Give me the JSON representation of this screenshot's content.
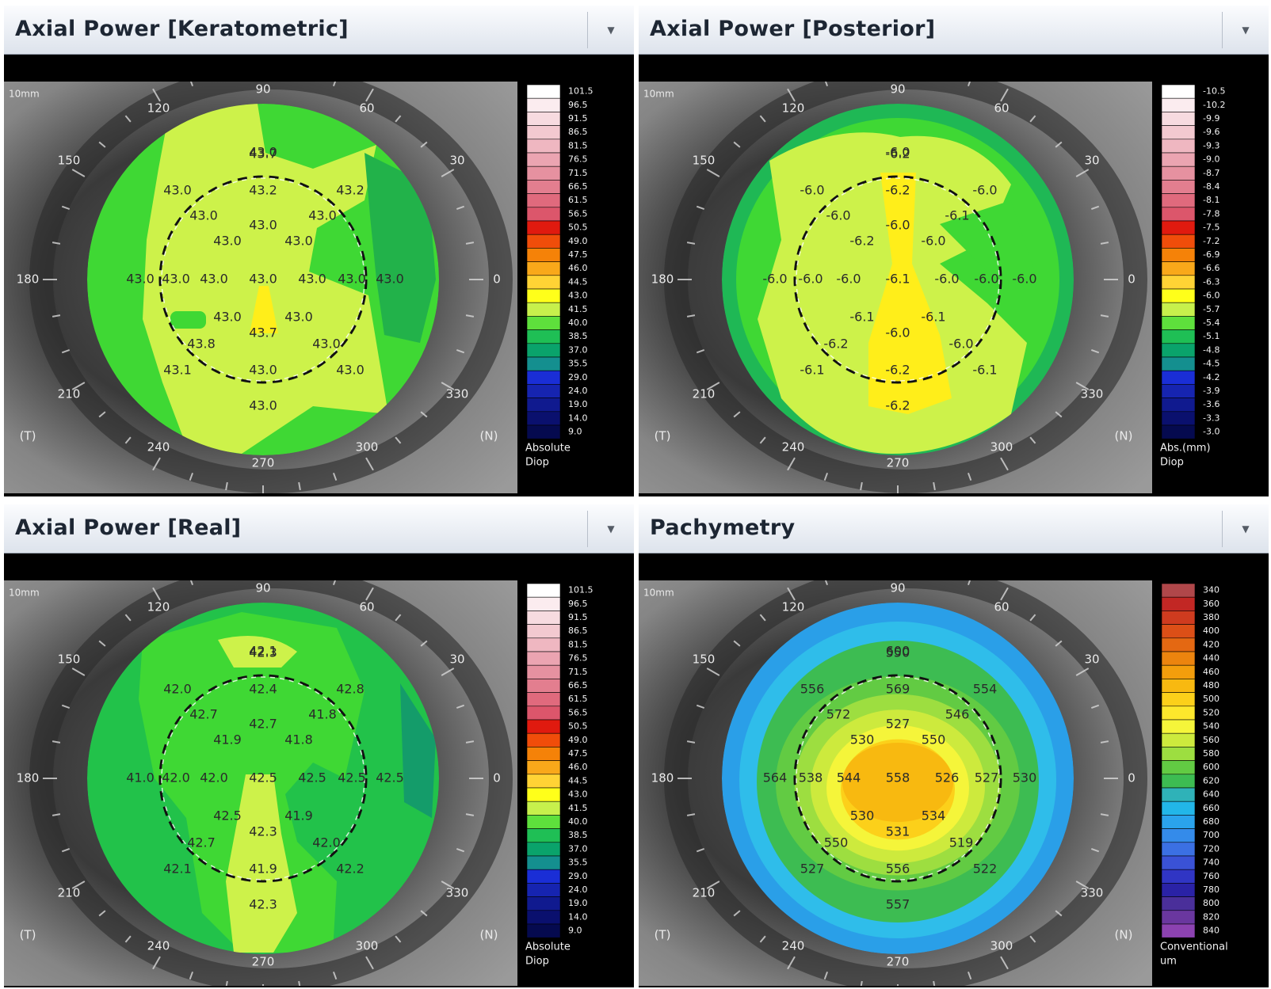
{
  "panels": [
    {
      "title": "Axial Power [Keratometric]",
      "scale_label": "10mm",
      "scheme": "green",
      "center_map": "green",
      "angles": {
        "a90": "90",
        "a120": "120",
        "a60": "60",
        "a150": "150",
        "a30": "30",
        "a180": "180",
        "a0": "0",
        "a210": "210",
        "a330": "330",
        "a240": "240",
        "a300": "300",
        "a270": "270"
      },
      "eye_left": "(T)",
      "eye_right": "(N)",
      "legend_values": [
        "101.5",
        "96.5",
        "91.5",
        "86.5",
        "81.5",
        "76.5",
        "71.5",
        "66.5",
        "61.5",
        "56.5",
        "50.5",
        "49.0",
        "47.5",
        "46.0",
        "44.5",
        "43.0",
        "41.5",
        "40.0",
        "38.5",
        "37.0",
        "35.5",
        "29.0",
        "24.0",
        "19.0",
        "14.0",
        "9.0"
      ],
      "legend_unit_1": "Absolute",
      "legend_unit_2": "Diop",
      "map_values": [
        "43.0",
        "43.0",
        "43.2",
        "43.2",
        "43.0",
        "43.0",
        "43.0",
        "43.0",
        "43.0",
        "43.0",
        "43.0",
        "43.0",
        "43.0",
        "43.0",
        "43.0",
        "43.0",
        "43.0",
        "43.0",
        "43.7",
        "43.8",
        "43.0",
        "43.1",
        "43.0",
        "43.0",
        "43.0",
        "43.7"
      ]
    },
    {
      "title": "Axial Power [Posterior]",
      "scale_label": "10mm",
      "scheme": "posterior",
      "center_map": "posterior",
      "angles": {
        "a90": "90",
        "a120": "120",
        "a60": "60",
        "a150": "150",
        "a30": "30",
        "a180": "180",
        "a0": "0",
        "a210": "210",
        "a330": "330",
        "a240": "240",
        "a300": "300",
        "a270": "270"
      },
      "eye_left": "(T)",
      "eye_right": "(N)",
      "legend_values": [
        "-10.5",
        "-10.2",
        "-9.9",
        "-9.6",
        "-9.3",
        "-9.0",
        "-8.7",
        "-8.4",
        "-8.1",
        "-7.8",
        "-7.5",
        "-7.2",
        "-6.9",
        "-6.6",
        "-6.3",
        "-6.0",
        "-5.7",
        "-5.4",
        "-5.1",
        "-4.8",
        "-4.5",
        "-4.2",
        "-3.9",
        "-3.6",
        "-3.3",
        "-3.0"
      ],
      "legend_unit_1": "Abs.(mm)",
      "legend_unit_2": "Diop",
      "map_values": [
        "-6.0",
        "-6.0",
        "-6.2",
        "-6.0",
        "-6.0",
        "-6.1",
        "-6.0",
        "-6.2",
        "-6.0",
        "-6.0",
        "-6.0",
        "-6.0",
        "-6.1",
        "-6.0",
        "-6.0",
        "-6.0",
        "-6.1",
        "-6.1",
        "-6.0",
        "-6.2",
        "-6.0",
        "-6.1",
        "-6.2",
        "-6.1",
        "-6.2",
        "-6.2"
      ]
    },
    {
      "title": "Axial Power [Real]",
      "scale_label": "10mm",
      "scheme": "green",
      "center_map": "real",
      "angles": {
        "a90": "90",
        "a120": "120",
        "a60": "60",
        "a150": "150",
        "a30": "30",
        "a180": "180",
        "a0": "0",
        "a210": "210",
        "a330": "330",
        "a240": "240",
        "a300": "300",
        "a270": "270"
      },
      "eye_left": "(T)",
      "eye_right": "(N)",
      "legend_values": [
        "101.5",
        "96.5",
        "91.5",
        "86.5",
        "81.5",
        "76.5",
        "71.5",
        "66.5",
        "61.5",
        "56.5",
        "50.5",
        "49.0",
        "47.5",
        "46.0",
        "44.5",
        "43.0",
        "41.5",
        "40.0",
        "38.5",
        "37.0",
        "35.5",
        "29.0",
        "24.0",
        "19.0",
        "14.0",
        "9.0"
      ],
      "legend_unit_1": "Absolute",
      "legend_unit_2": "Diop",
      "map_values": [
        "42.1",
        "42.0",
        "42.4",
        "42.8",
        "42.7",
        "41.8",
        "42.7",
        "41.9",
        "41.8",
        "41.0",
        "42.0",
        "42.0",
        "42.5",
        "42.5",
        "42.5",
        "42.5",
        "42.5",
        "41.9",
        "42.3",
        "42.7",
        "42.0",
        "42.1",
        "41.9",
        "42.2",
        "42.3",
        "42.3"
      ]
    },
    {
      "title": "Pachymetry",
      "scale_label": "10mm",
      "scheme": "pachy",
      "center_map": "pachy",
      "angles": {
        "a90": "90",
        "a120": "120",
        "a60": "60",
        "a150": "150",
        "a30": "30",
        "a180": "180",
        "a0": "0",
        "a210": "210",
        "a330": "330",
        "a240": "240",
        "a300": "300",
        "a270": "270"
      },
      "eye_left": "(T)",
      "eye_right": "(N)",
      "legend_values": [
        "340",
        "360",
        "380",
        "400",
        "420",
        "440",
        "460",
        "480",
        "500",
        "520",
        "540",
        "560",
        "580",
        "600",
        "620",
        "640",
        "660",
        "680",
        "700",
        "720",
        "740",
        "760",
        "780",
        "800",
        "820",
        "840"
      ],
      "legend_unit_1": "Conventional",
      "legend_unit_2": "um",
      "map_values": [
        "600",
        "556",
        "569",
        "554",
        "572",
        "546",
        "527",
        "530",
        "550",
        "564",
        "538",
        "544",
        "558",
        "526",
        "527",
        "530",
        "530",
        "534",
        "531",
        "550",
        "519",
        "527",
        "556",
        "522",
        "557",
        "550"
      ]
    }
  ],
  "colors": {
    "green_scale": [
      "#ffffff",
      "#fbecef",
      "#f7dbe0",
      "#f3c9d0",
      "#efb7c1",
      "#eba4b1",
      "#e691a0",
      "#e37e8f",
      "#e06a7d",
      "#dc566b",
      "#e01a0f",
      "#f04d0a",
      "#f58208",
      "#f9a81a",
      "#ffd335",
      "#ffff1a",
      "#c7f04c",
      "#5ee03c",
      "#1fbf55",
      "#0aa36b",
      "#148f8f",
      "#1a2ed6",
      "#1624b0",
      "#101a8f",
      "#0a106e",
      "#050a4f"
    ],
    "posterior_scale": [
      "#ffffff",
      "#fbecef",
      "#f7dbe0",
      "#f3c9d0",
      "#efb7c1",
      "#eba4b1",
      "#e691a0",
      "#e37e8f",
      "#e06a7d",
      "#dc566b",
      "#e01a0f",
      "#f04d0a",
      "#f58208",
      "#f9a81a",
      "#ffd335",
      "#ffff1a",
      "#c7f04c",
      "#5ee03c",
      "#1fbf55",
      "#0aa36b",
      "#148f8f",
      "#1a2ed6",
      "#1624b0",
      "#101a8f",
      "#0a106e",
      "#050a4f"
    ],
    "pachy_scale": [
      "#b0474a",
      "#c22724",
      "#cf3b1f",
      "#dc4f17",
      "#e46812",
      "#ec840e",
      "#f39e0c",
      "#f8b910",
      "#fcd01a",
      "#fde82c",
      "#f5f53a",
      "#cdea3d",
      "#9dde40",
      "#62cb43",
      "#3dbc52",
      "#2fb2b8",
      "#22b6e8",
      "#2aa3ec",
      "#348bea",
      "#3b70e3",
      "#3a52d6",
      "#3035c4",
      "#2a22a6",
      "#4a2f9a",
      "#6a379f",
      "#8c42b1"
    ]
  }
}
